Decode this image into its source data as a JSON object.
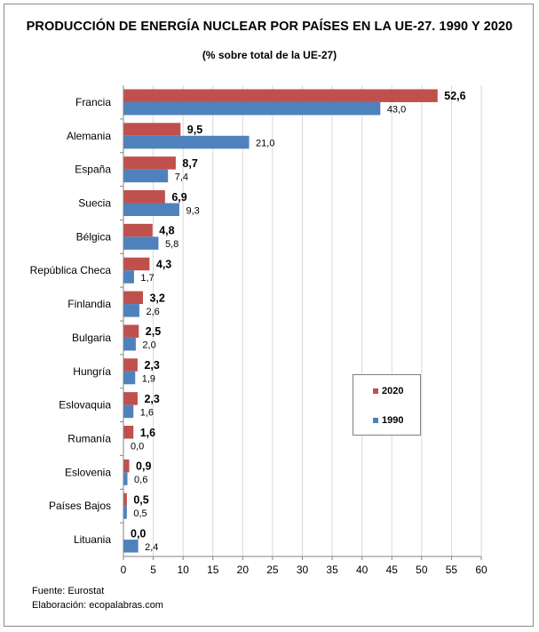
{
  "title": "PRODUCCIÓN DE ENERGÍA NUCLEAR POR PAÍSES EN LA UE-27. 1990 Y 2020",
  "subtitle": "(% sobre total de la UE-27)",
  "source_lines": [
    "Fuente: Eurostat",
    "Elaboración: ecopalabras.com"
  ],
  "colors": {
    "s2020": "#c0504d",
    "s1990": "#4f81bd",
    "grid": "#d9d9d9",
    "axis": "#868686"
  },
  "chart_data": {
    "type": "bar",
    "orientation": "horizontal",
    "title": "PRODUCCIÓN DE ENERGÍA NUCLEAR POR PAÍSES EN LA UE-27. 1990 Y 2020",
    "subtitle": "(% sobre total de la UE-27)",
    "categories": [
      "Francia",
      "Alemania",
      "España",
      "Suecia",
      "Bélgica",
      "República Checa",
      "Finlandia",
      "Bulgaria",
      "Hungría",
      "Eslovaquia",
      "Rumanía",
      "Eslovenia",
      "Países Bajos",
      "Lituania"
    ],
    "series": [
      {
        "name": "2020",
        "values": [
          52.6,
          9.5,
          8.7,
          6.9,
          4.8,
          4.3,
          3.2,
          2.5,
          2.3,
          2.3,
          1.6,
          0.9,
          0.5,
          0.0
        ],
        "labels": [
          "52,6",
          "9,5",
          "8,7",
          "6,9",
          "4,8",
          "4,3",
          "3,2",
          "2,5",
          "2,3",
          "2,3",
          "1,6",
          "0,9",
          "0,5",
          "0,0"
        ]
      },
      {
        "name": "1990",
        "values": [
          43.0,
          21.0,
          7.4,
          9.3,
          5.8,
          1.7,
          2.6,
          2.0,
          1.9,
          1.6,
          0.0,
          0.6,
          0.5,
          2.4
        ],
        "labels": [
          "43,0",
          "21,0",
          "7,4",
          "9,3",
          "5,8",
          "1,7",
          "2,6",
          "2,0",
          "1,9",
          "1,6",
          "0,0",
          "0,6",
          "0,5",
          "2,4"
        ]
      }
    ],
    "xlim": [
      0,
      60
    ],
    "xticks": [
      "0",
      "5",
      "10",
      "15",
      "20",
      "25",
      "30",
      "35",
      "40",
      "45",
      "50",
      "55",
      "60"
    ],
    "grid": true,
    "legend": {
      "position": "right",
      "entries": [
        "2020",
        "1990"
      ]
    }
  }
}
